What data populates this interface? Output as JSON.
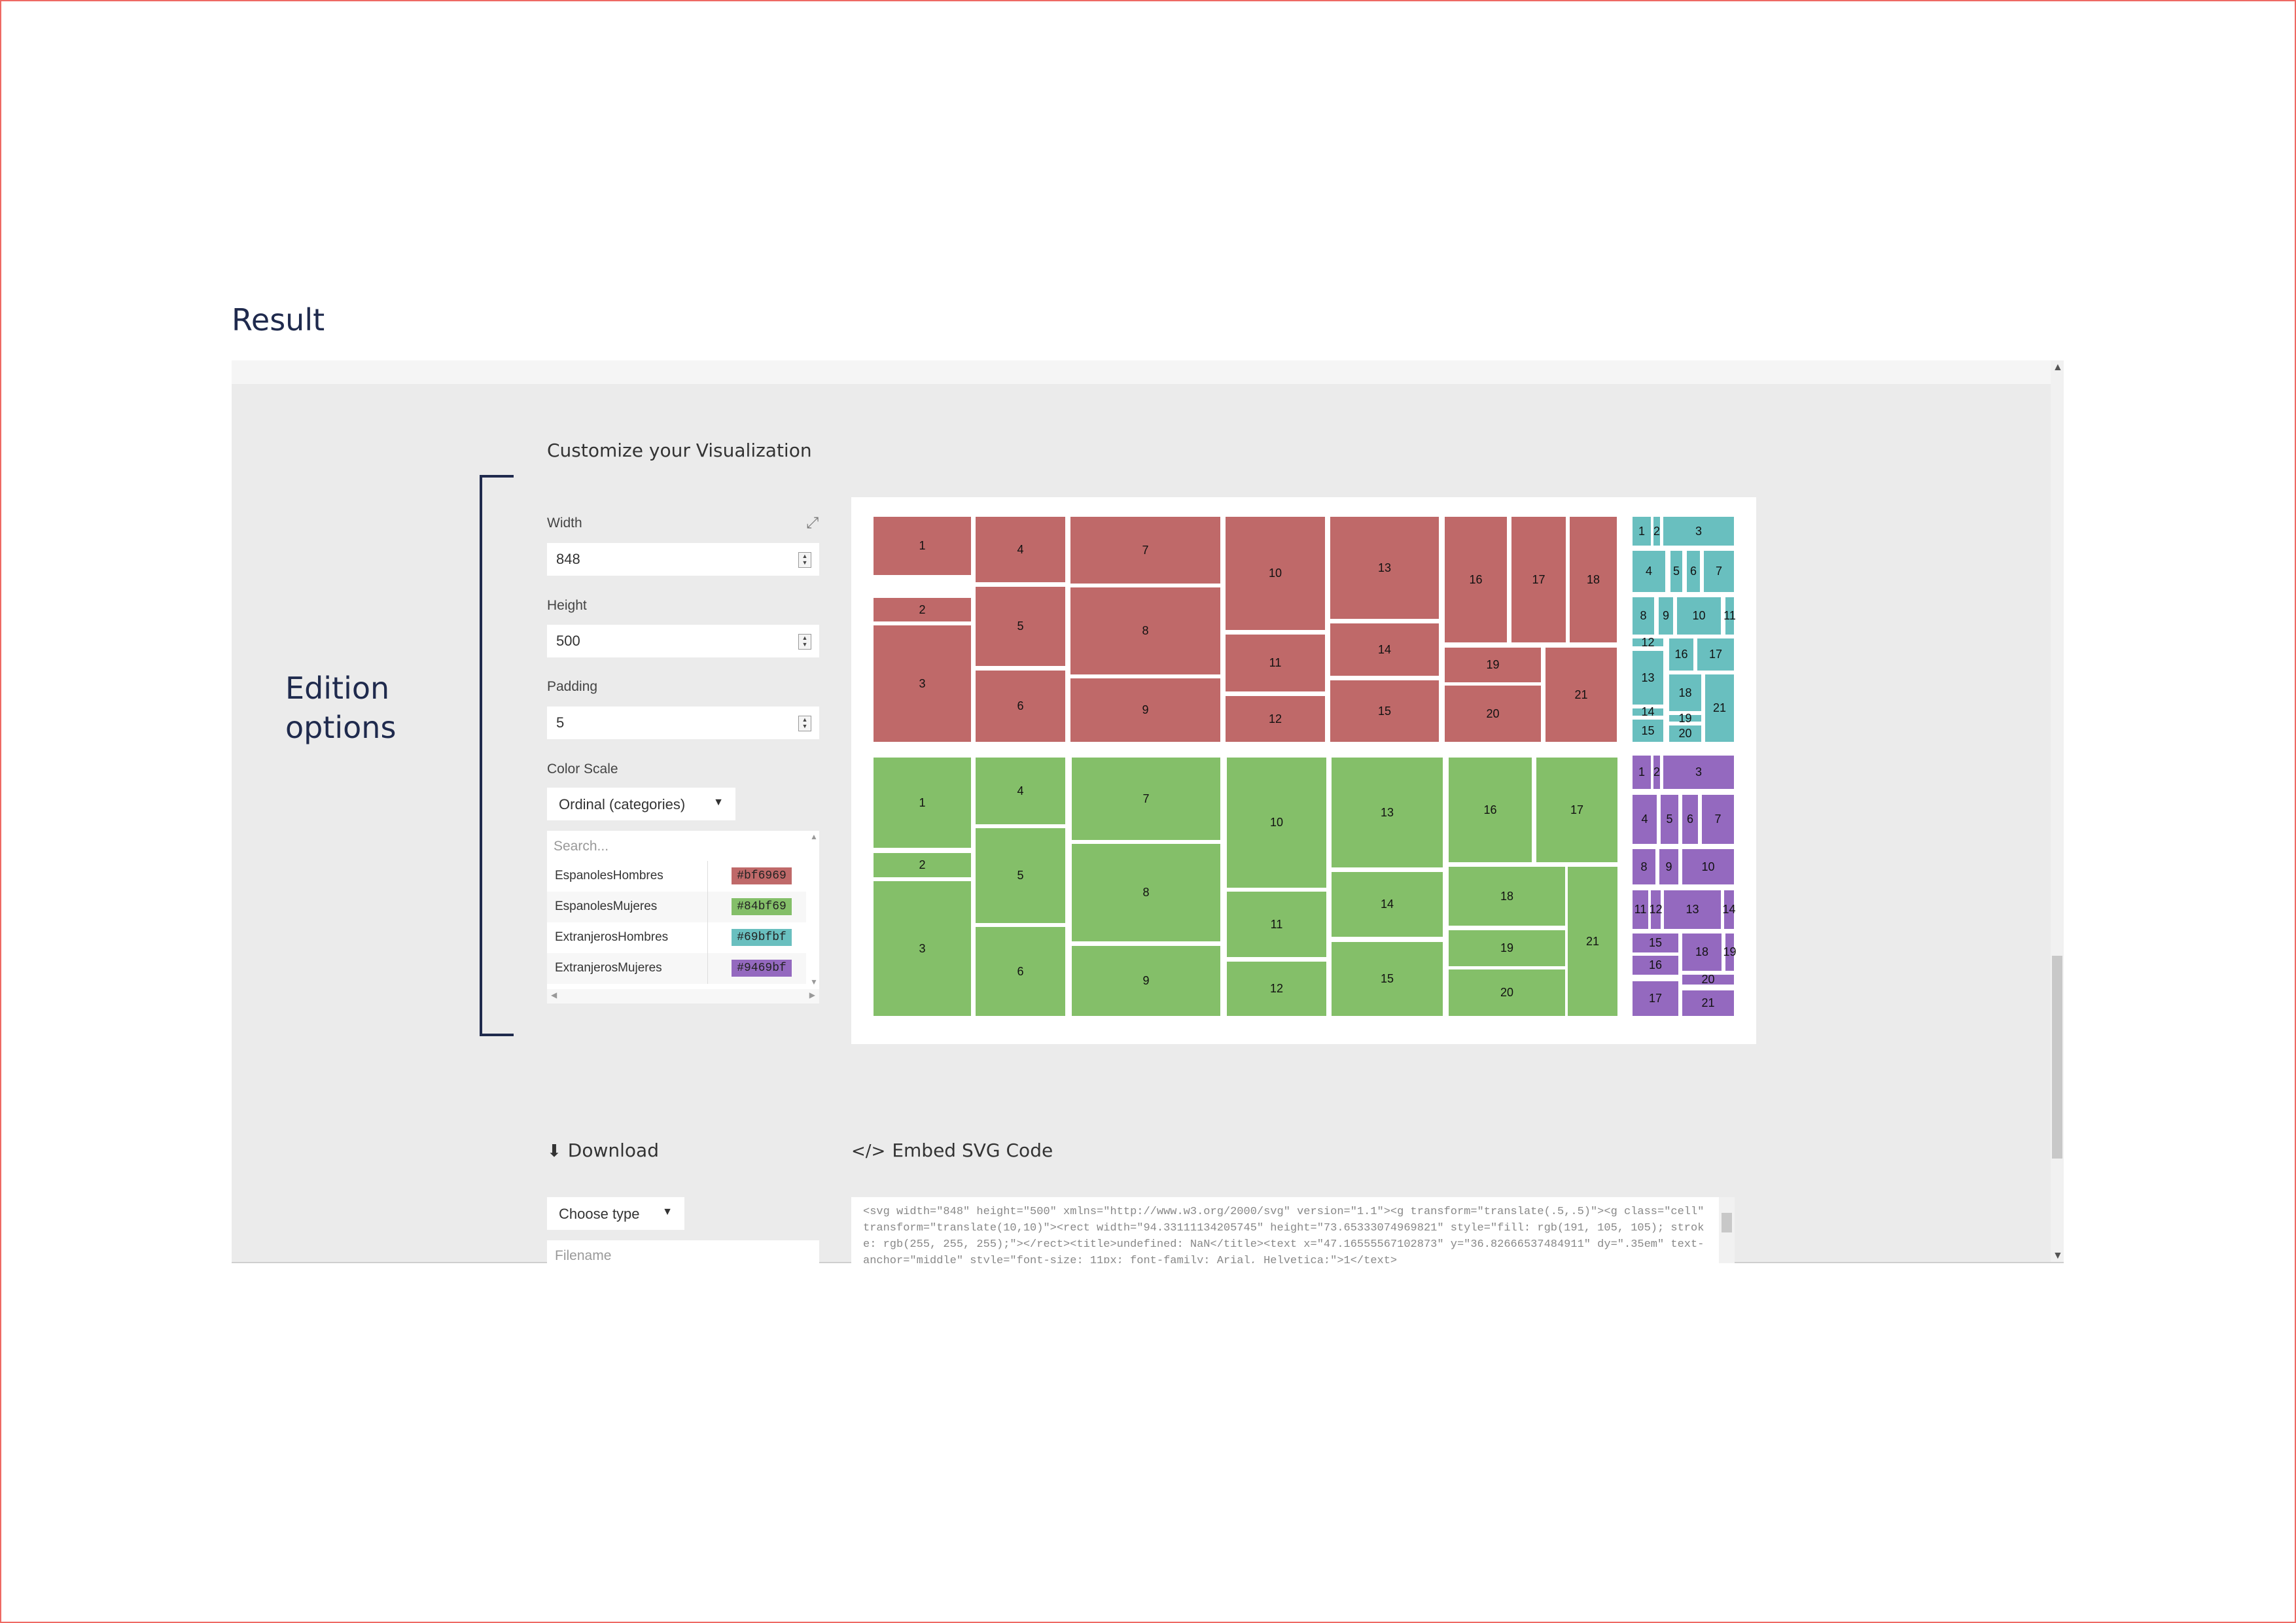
{
  "result_title": "Result",
  "customize_title": "Customize your Visualization",
  "edition_label": [
    "Edition",
    "options"
  ],
  "fields": {
    "width_label": "Width",
    "width_value": "848",
    "height_label": "Height",
    "height_value": "500",
    "padding_label": "Padding",
    "padding_value": "5",
    "color_scale_label": "Color Scale",
    "color_scale_value": "Ordinal (categories)"
  },
  "legend": {
    "search_placeholder": "Search...",
    "items": [
      {
        "name": "EspanolesHombres",
        "color": "#bf6969"
      },
      {
        "name": "EspanolesMujeres",
        "color": "#84bf69"
      },
      {
        "name": "ExtranjerosHombres",
        "color": "#69bfbf"
      },
      {
        "name": "ExtranjerosMujeres",
        "color": "#9469bf"
      }
    ]
  },
  "download": {
    "title": "Download",
    "choose_type": "Choose type",
    "filename_placeholder": "Filename"
  },
  "embed": {
    "title": "Embed SVG Code",
    "code": "<svg width=\"848\" height=\"500\" xmlns=\"http://www.w3.org/2000/svg\" version=\"1.1\"><g transform=\"translate(.5,.5)\"><g class=\"cell\" transform=\"translate(10,10)\"><rect width=\"94.33111134205745\" height=\"73.65333074969821\" style=\"fill: rgb(191, 105, 105); stroke: rgb(255, 255, 255);\"></rect><title>undefined: NaN</title><text x=\"47.16555567102873\" y=\"36.82666537484911\" dy=\".35em\" text-anchor=\"middle\" style=\"font-size: 11px; font-family: Arial, Helvetica;\">1</text>"
  },
  "chart_data": {
    "type": "treemap",
    "groups": [
      {
        "name": "EspanolesHombres",
        "color": "#bf6969",
        "labels": [
          "1",
          "2",
          "3",
          "4",
          "5",
          "6",
          "7",
          "8",
          "9",
          "10",
          "11",
          "12",
          "13",
          "14",
          "15",
          "16",
          "17",
          "18",
          "19",
          "20",
          "21"
        ]
      },
      {
        "name": "EspanolesMujeres",
        "color": "#84bf69",
        "labels": [
          "1",
          "2",
          "3",
          "4",
          "5",
          "6",
          "7",
          "8",
          "9",
          "10",
          "11",
          "12",
          "13",
          "14",
          "15",
          "16",
          "17",
          "18",
          "19",
          "20",
          "21"
        ]
      },
      {
        "name": "ExtranjerosHombres",
        "color": "#69bfbf",
        "labels": [
          "1",
          "2",
          "3",
          "4",
          "5",
          "6",
          "7",
          "8",
          "9",
          "10",
          "11",
          "12",
          "13",
          "14",
          "15",
          "16",
          "17",
          "18",
          "19",
          "20",
          "21"
        ]
      },
      {
        "name": "ExtranjerosMujeres",
        "color": "#9469bf",
        "labels": [
          "1",
          "2",
          "3",
          "4",
          "5",
          "6",
          "7",
          "8",
          "9",
          "10",
          "11",
          "12",
          "13",
          "14",
          "15",
          "16",
          "17",
          "18",
          "19",
          "20",
          "21"
        ]
      }
    ]
  }
}
